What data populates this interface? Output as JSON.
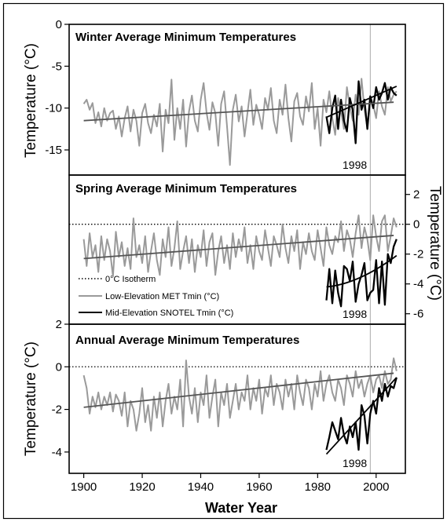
{
  "chart_data": [
    {
      "type": "line",
      "title": "Winter Average Minimum Temperatures",
      "ylabel": "Temperature (°C)",
      "ylim": [
        -18,
        0
      ],
      "yticks": [
        0,
        -5,
        -10,
        -15
      ],
      "xlim": [
        1895,
        2010
      ],
      "marker_label": "1998",
      "series": [
        {
          "key": "met",
          "color": "#9a9a9a",
          "x": [
            1900,
            1901,
            1902,
            1903,
            1904,
            1905,
            1906,
            1907,
            1908,
            1909,
            1910,
            1911,
            1912,
            1913,
            1914,
            1915,
            1916,
            1917,
            1918,
            1919,
            1920,
            1921,
            1922,
            1923,
            1924,
            1925,
            1926,
            1927,
            1928,
            1929,
            1930,
            1931,
            1932,
            1933,
            1934,
            1935,
            1936,
            1937,
            1938,
            1939,
            1940,
            1941,
            1942,
            1943,
            1944,
            1945,
            1946,
            1947,
            1948,
            1949,
            1950,
            1951,
            1952,
            1953,
            1954,
            1955,
            1956,
            1957,
            1958,
            1959,
            1960,
            1961,
            1962,
            1963,
            1964,
            1965,
            1966,
            1967,
            1968,
            1969,
            1970,
            1971,
            1972,
            1973,
            1974,
            1975,
            1976,
            1977,
            1978,
            1979,
            1980,
            1981,
            1982,
            1983,
            1984,
            1985,
            1986,
            1987,
            1988,
            1989,
            1990,
            1991,
            1992,
            1993,
            1994,
            1995,
            1996,
            1997,
            1998,
            1999,
            2000,
            2001,
            2002,
            2003,
            2004,
            2005,
            2006,
            2007
          ],
          "y": [
            -9.5,
            -9.0,
            -10.2,
            -9.4,
            -11.8,
            -10.5,
            -12.2,
            -10.0,
            -11.5,
            -10.6,
            -10.3,
            -12.5,
            -11.0,
            -13.4,
            -11.2,
            -9.8,
            -12.8,
            -10.2,
            -11.5,
            -14.5,
            -10.6,
            -9.5,
            -11.8,
            -13.0,
            -10.8,
            -12.2,
            -9.5,
            -15.2,
            -10.2,
            -11.8,
            -6.6,
            -13.8,
            -10.0,
            -12.5,
            -9.0,
            -14.6,
            -10.4,
            -8.5,
            -11.5,
            -12.8,
            -9.0,
            -7.0,
            -10.5,
            -12.6,
            -9.3,
            -10.6,
            -14.5,
            -9.5,
            -8.0,
            -12.2,
            -16.8,
            -10.2,
            -8.4,
            -11.6,
            -9.8,
            -13.4,
            -10.6,
            -7.8,
            -12.0,
            -9.6,
            -10.8,
            -12.5,
            -8.8,
            -10.2,
            -7.6,
            -11.5,
            -13.0,
            -9.0,
            -10.8,
            -7.2,
            -11.2,
            -14.0,
            -9.2,
            -8.2,
            -11.0,
            -12.0,
            -8.6,
            -10.4,
            -7.0,
            -12.5,
            -10.0,
            -14.5,
            -9.0,
            -10.5,
            -8.0,
            -11.2,
            -13.2,
            -8.8,
            -10.4,
            -12.5,
            -7.5,
            -9.8,
            -11.5,
            -8.4,
            -10.8,
            -6.5,
            -10.2,
            -12.3,
            -8.6,
            -9.6,
            -11.2,
            -8.0,
            -9.8,
            -10.8,
            -7.5,
            -9.2,
            -8.4,
            -8.0
          ]
        },
        {
          "key": "snotel",
          "color": "#000000",
          "x": [
            1983,
            1984,
            1985,
            1986,
            1987,
            1988,
            1989,
            1990,
            1991,
            1992,
            1993,
            1994,
            1995,
            1996,
            1997,
            1998,
            1999,
            2000,
            2001,
            2002,
            2003,
            2004,
            2005,
            2006,
            2007
          ],
          "y": [
            -11.0,
            -13.0,
            -10.0,
            -8.5,
            -12.5,
            -9.0,
            -11.5,
            -12.8,
            -8.8,
            -10.2,
            -14.2,
            -6.8,
            -10.2,
            -9.0,
            -12.5,
            -8.6,
            -10.0,
            -7.5,
            -9.0,
            -8.2,
            -7.0,
            -9.0,
            -7.5,
            -8.2,
            -8.5
          ]
        }
      ],
      "trends": [
        {
          "key": "met_trend",
          "color": "#555555",
          "x": [
            1900,
            2006
          ],
          "y": [
            -11.5,
            -9.3
          ]
        },
        {
          "key": "snotel_trend",
          "color": "#000000",
          "x": [
            1983,
            2007
          ],
          "y": [
            -11.1,
            -7.4
          ]
        }
      ]
    },
    {
      "type": "line",
      "title": "Spring Average Minimum Temperatures",
      "ylabel": "Temperature (°C)",
      "y_axis_side": "right",
      "ylim": [
        -6.7,
        3.3
      ],
      "yticks": [
        2,
        0,
        -2,
        -4,
        -6
      ],
      "xlim": [
        1895,
        2010
      ],
      "marker_label": "1998",
      "isotherm": 0,
      "legend": {
        "placement": "bottom-left",
        "entries": [
          {
            "label": "0°C Isotherm",
            "style": "dotted"
          },
          {
            "label": "Low-Elevation MET Tmin (°C)",
            "style": "gray"
          },
          {
            "label": "Mid-Elevation SNOTEL Tmin (°C)",
            "style": "black"
          }
        ]
      },
      "series": [
        {
          "key": "met",
          "color": "#9a9a9a",
          "x": [
            1900,
            1901,
            1902,
            1903,
            1904,
            1905,
            1906,
            1907,
            1908,
            1909,
            1910,
            1911,
            1912,
            1913,
            1914,
            1915,
            1916,
            1917,
            1918,
            1919,
            1920,
            1921,
            1922,
            1923,
            1924,
            1925,
            1926,
            1927,
            1928,
            1929,
            1930,
            1931,
            1932,
            1933,
            1934,
            1935,
            1936,
            1937,
            1938,
            1939,
            1940,
            1941,
            1942,
            1943,
            1944,
            1945,
            1946,
            1947,
            1948,
            1949,
            1950,
            1951,
            1952,
            1953,
            1954,
            1955,
            1956,
            1957,
            1958,
            1959,
            1960,
            1961,
            1962,
            1963,
            1964,
            1965,
            1966,
            1967,
            1968,
            1969,
            1970,
            1971,
            1972,
            1973,
            1974,
            1975,
            1976,
            1977,
            1978,
            1979,
            1980,
            1981,
            1982,
            1983,
            1984,
            1985,
            1986,
            1987,
            1988,
            1989,
            1990,
            1991,
            1992,
            1993,
            1994,
            1995,
            1996,
            1997,
            1998,
            1999,
            2000,
            2001,
            2002,
            2003,
            2004,
            2005,
            2006,
            2007
          ],
          "y": [
            -1.0,
            -2.8,
            -0.6,
            -2.2,
            -1.4,
            -3.2,
            -0.8,
            -2.4,
            -1.0,
            -1.8,
            -3.5,
            -0.5,
            -2.2,
            -1.2,
            -2.8,
            -1.6,
            -3.0,
            0.4,
            -2.2,
            -1.4,
            -2.6,
            -0.8,
            -3.2,
            -1.8,
            -0.6,
            -2.4,
            -3.4,
            -1.0,
            -2.2,
            -0.2,
            -2.8,
            -1.6,
            0.2,
            -3.0,
            -1.8,
            -0.8,
            -2.6,
            -1.0,
            -3.2,
            -1.4,
            -2.2,
            -0.4,
            -2.8,
            -1.2,
            -0.6,
            -3.4,
            -1.8,
            -0.8,
            -2.6,
            -1.4,
            -3.0,
            -0.6,
            -2.2,
            -1.0,
            -1.8,
            -0.2,
            -2.6,
            -1.4,
            -3.0,
            -0.8,
            -1.8,
            -2.4,
            -0.4,
            -1.6,
            -2.8,
            -0.8,
            -1.4,
            -2.2,
            0.0,
            -1.6,
            -2.6,
            -0.8,
            -1.8,
            -0.4,
            -3.0,
            -1.2,
            -2.0,
            -0.6,
            -1.8,
            -2.4,
            -0.4,
            -1.6,
            -2.8,
            -0.2,
            -1.4,
            -2.0,
            -0.8,
            -1.2,
            0.2,
            -1.8,
            -0.4,
            -1.0,
            -2.2,
            -0.6,
            0.6,
            -1.6,
            -0.2,
            -1.0,
            -2.4,
            0.6,
            -0.8,
            -1.8,
            0.2,
            0.6,
            -1.8,
            -0.8,
            0.4,
            -0.2
          ]
        },
        {
          "key": "snotel",
          "color": "#000000",
          "x": [
            1983,
            1984,
            1985,
            1986,
            1987,
            1988,
            1989,
            1990,
            1991,
            1992,
            1993,
            1994,
            1995,
            1996,
            1997,
            1998,
            1999,
            2000,
            2001,
            2002,
            2003,
            2004,
            2005,
            2006,
            2007
          ],
          "y": [
            -5.1,
            -3.0,
            -5.3,
            -3.1,
            -4.6,
            -5.5,
            -2.8,
            -3.0,
            -3.8,
            -2.5,
            -5.2,
            -4.0,
            -3.4,
            -2.6,
            -5.1,
            -4.6,
            -4.4,
            -2.4,
            -5.3,
            -2.5,
            -5.4,
            -2.0,
            -2.6,
            -1.5,
            -1.0
          ]
        }
      ],
      "trends": [
        {
          "key": "met_trend",
          "color": "#555555",
          "x": [
            1900,
            2006
          ],
          "y": [
            -2.3,
            -0.75
          ]
        },
        {
          "key": "snotel_trend",
          "color": "#000000",
          "curve": "quadratic",
          "x": [
            1983,
            1994,
            2007
          ],
          "y": [
            -4.2,
            -4.0,
            -2.1
          ]
        }
      ]
    },
    {
      "type": "line",
      "title": "Annual Average Minimum Temperatures",
      "ylabel": "Temperature (°C)",
      "xlabel": "Water Year",
      "ylim": [
        -5,
        2
      ],
      "yticks": [
        2,
        0,
        -2,
        -4
      ],
      "xlim": [
        1895,
        2010
      ],
      "xticks": [
        1900,
        1920,
        1940,
        1960,
        1980,
        2000
      ],
      "marker_label": "1998",
      "isotherm": 0,
      "series": [
        {
          "key": "met",
          "color": "#9a9a9a",
          "x": [
            1900,
            1901,
            1902,
            1903,
            1904,
            1905,
            1906,
            1907,
            1908,
            1909,
            1910,
            1911,
            1912,
            1913,
            1914,
            1915,
            1916,
            1917,
            1918,
            1919,
            1920,
            1921,
            1922,
            1923,
            1924,
            1925,
            1926,
            1927,
            1928,
            1929,
            1930,
            1931,
            1932,
            1933,
            1934,
            1935,
            1936,
            1937,
            1938,
            1939,
            1940,
            1941,
            1942,
            1943,
            1944,
            1945,
            1946,
            1947,
            1948,
            1949,
            1950,
            1951,
            1952,
            1953,
            1954,
            1955,
            1956,
            1957,
            1958,
            1959,
            1960,
            1961,
            1962,
            1963,
            1964,
            1965,
            1966,
            1967,
            1968,
            1969,
            1970,
            1971,
            1972,
            1973,
            1974,
            1975,
            1976,
            1977,
            1978,
            1979,
            1980,
            1981,
            1982,
            1983,
            1984,
            1985,
            1986,
            1987,
            1988,
            1989,
            1990,
            1991,
            1992,
            1993,
            1994,
            1995,
            1996,
            1997,
            1998,
            1999,
            2000,
            2001,
            2002,
            2003,
            2004,
            2005,
            2006,
            2007
          ],
          "y": [
            -0.4,
            -1.0,
            -2.2,
            -1.4,
            -1.9,
            -1.2,
            -2.0,
            -1.4,
            -1.8,
            -1.2,
            -2.1,
            -1.3,
            -1.6,
            -2.3,
            -1.2,
            -2.8,
            -1.6,
            -2.0,
            -3.0,
            -2.2,
            -1.0,
            -2.6,
            -1.8,
            -3.0,
            -1.4,
            -2.4,
            -1.2,
            -2.8,
            -1.6,
            -0.8,
            -2.2,
            -1.4,
            -2.0,
            -0.6,
            -2.8,
            0.3,
            -1.4,
            -2.2,
            -1.0,
            -2.6,
            -1.2,
            -1.8,
            -0.4,
            -2.4,
            -1.4,
            -0.6,
            -2.8,
            -1.2,
            -1.8,
            -0.8,
            -2.4,
            -1.6,
            -0.8,
            -2.0,
            -1.2,
            -1.6,
            -0.4,
            -2.0,
            -1.0,
            -1.6,
            -0.6,
            -2.2,
            -1.0,
            -1.4,
            -0.4,
            -1.8,
            -0.8,
            -1.2,
            -2.0,
            -0.6,
            -1.4,
            -0.8,
            -2.0,
            -0.4,
            -1.2,
            -1.8,
            -0.6,
            -1.0,
            -2.0,
            -0.8,
            -1.4,
            -0.2,
            -1.6,
            -0.8,
            -0.4,
            -1.2,
            -1.6,
            -0.6,
            -1.0,
            -1.8,
            -0.4,
            -0.8,
            -1.4,
            -0.2,
            -1.0,
            -0.6,
            -1.4,
            -0.8,
            -0.4,
            -1.2,
            -0.6,
            -0.4,
            -1.0,
            -0.2,
            -0.8,
            -0.6,
            0.4,
            -0.2
          ]
        },
        {
          "key": "snotel",
          "color": "#000000",
          "x": [
            1983,
            1984,
            1985,
            1986,
            1987,
            1988,
            1989,
            1990,
            1991,
            1992,
            1993,
            1994,
            1995,
            1996,
            1997,
            1998,
            1999,
            2000,
            2001,
            2002,
            2003,
            2004,
            2005,
            2006,
            2007
          ],
          "y": [
            -3.9,
            -3.3,
            -2.6,
            -3.0,
            -3.4,
            -2.4,
            -3.2,
            -3.6,
            -2.8,
            -3.3,
            -2.6,
            -3.9,
            -1.8,
            -2.3,
            -3.6,
            -2.2,
            -1.6,
            -2.2,
            -1.0,
            -1.6,
            -0.8,
            -1.4,
            -0.9,
            -1.0,
            -0.5
          ]
        }
      ],
      "trends": [
        {
          "key": "met_trend",
          "color": "#555555",
          "x": [
            1900,
            2006
          ],
          "y": [
            -1.9,
            -0.3
          ]
        },
        {
          "key": "snotel_trend",
          "color": "#000000",
          "x": [
            1983,
            2007
          ],
          "y": [
            -4.1,
            -0.5
          ]
        }
      ]
    }
  ]
}
